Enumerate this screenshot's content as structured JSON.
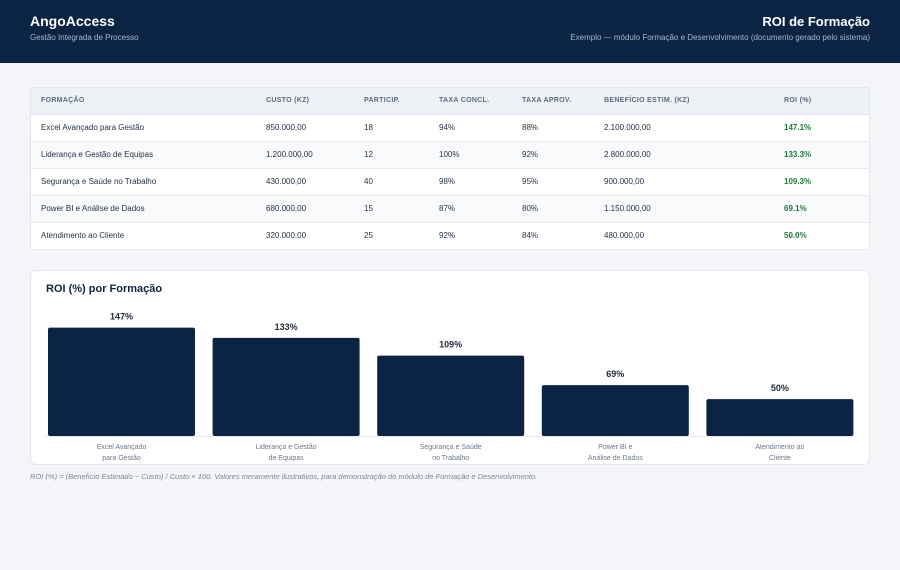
{
  "header": {
    "brand": "AngoAccess",
    "brand_subtitle": "Gestão Integrada de Processo",
    "doc_title": "ROI de Formação",
    "doc_subtitle": "Exemplo — módulo Formação e Desenvolvimento (documento gerado pelo sistema)",
    "background_color": "#0b2444"
  },
  "table": {
    "columns": [
      "FORMAÇÃO",
      "CUSTO (KZ)",
      "PARTICIP.",
      "TAXA CONCL.",
      "TAXA APROV.",
      "BENEFÍCIO ESTIM. (KZ)",
      "ROI (%)"
    ],
    "rows": [
      [
        "Excel Avançado para Gestão",
        "850.000,00",
        "18",
        "94%",
        "88%",
        "2.100.000,00",
        "147.1%"
      ],
      [
        "Liderança e Gestão de Equipas",
        "1.200.000,00",
        "12",
        "100%",
        "92%",
        "2.800.000,00",
        "133.3%"
      ],
      [
        "Segurança e Saúde no Trabalho",
        "430.000,00",
        "40",
        "98%",
        "95%",
        "900.000,00",
        "109.3%"
      ],
      [
        "Power BI e Análise de Dados",
        "680.000,00",
        "15",
        "87%",
        "80%",
        "1.150.000,00",
        "69.1%"
      ],
      [
        "Atendimento ao Cliente",
        "320.000,00",
        "25",
        "92%",
        "84%",
        "480.000,00",
        "50.0%"
      ]
    ],
    "roi_color": "#1c7c3a"
  },
  "chart_data": {
    "type": "bar",
    "title": "ROI (%) por Formação",
    "categories": [
      [
        "Excel Avançado",
        "para Gestão"
      ],
      [
        "Liderança e Gestão",
        "de Equipas"
      ],
      [
        "Segurança e Saúde",
        "no Trabalho"
      ],
      [
        "Power BI e",
        "Análise de Dados"
      ],
      [
        "Atendimento ao",
        "Cliente"
      ]
    ],
    "values": [
      147,
      133,
      109,
      69,
      50
    ],
    "data_labels": [
      "147%",
      "133%",
      "109%",
      "69%",
      "50%"
    ],
    "bar_color": "#0b2444",
    "ylim": [
      0,
      160
    ],
    "grid": false,
    "legend": "none"
  },
  "footnote": "ROI (%) = (Benefício Estimado − Custo) / Custo × 100. Valores meramente ilustrativos, para demonstração do módulo de Formação e Desenvolvimento."
}
